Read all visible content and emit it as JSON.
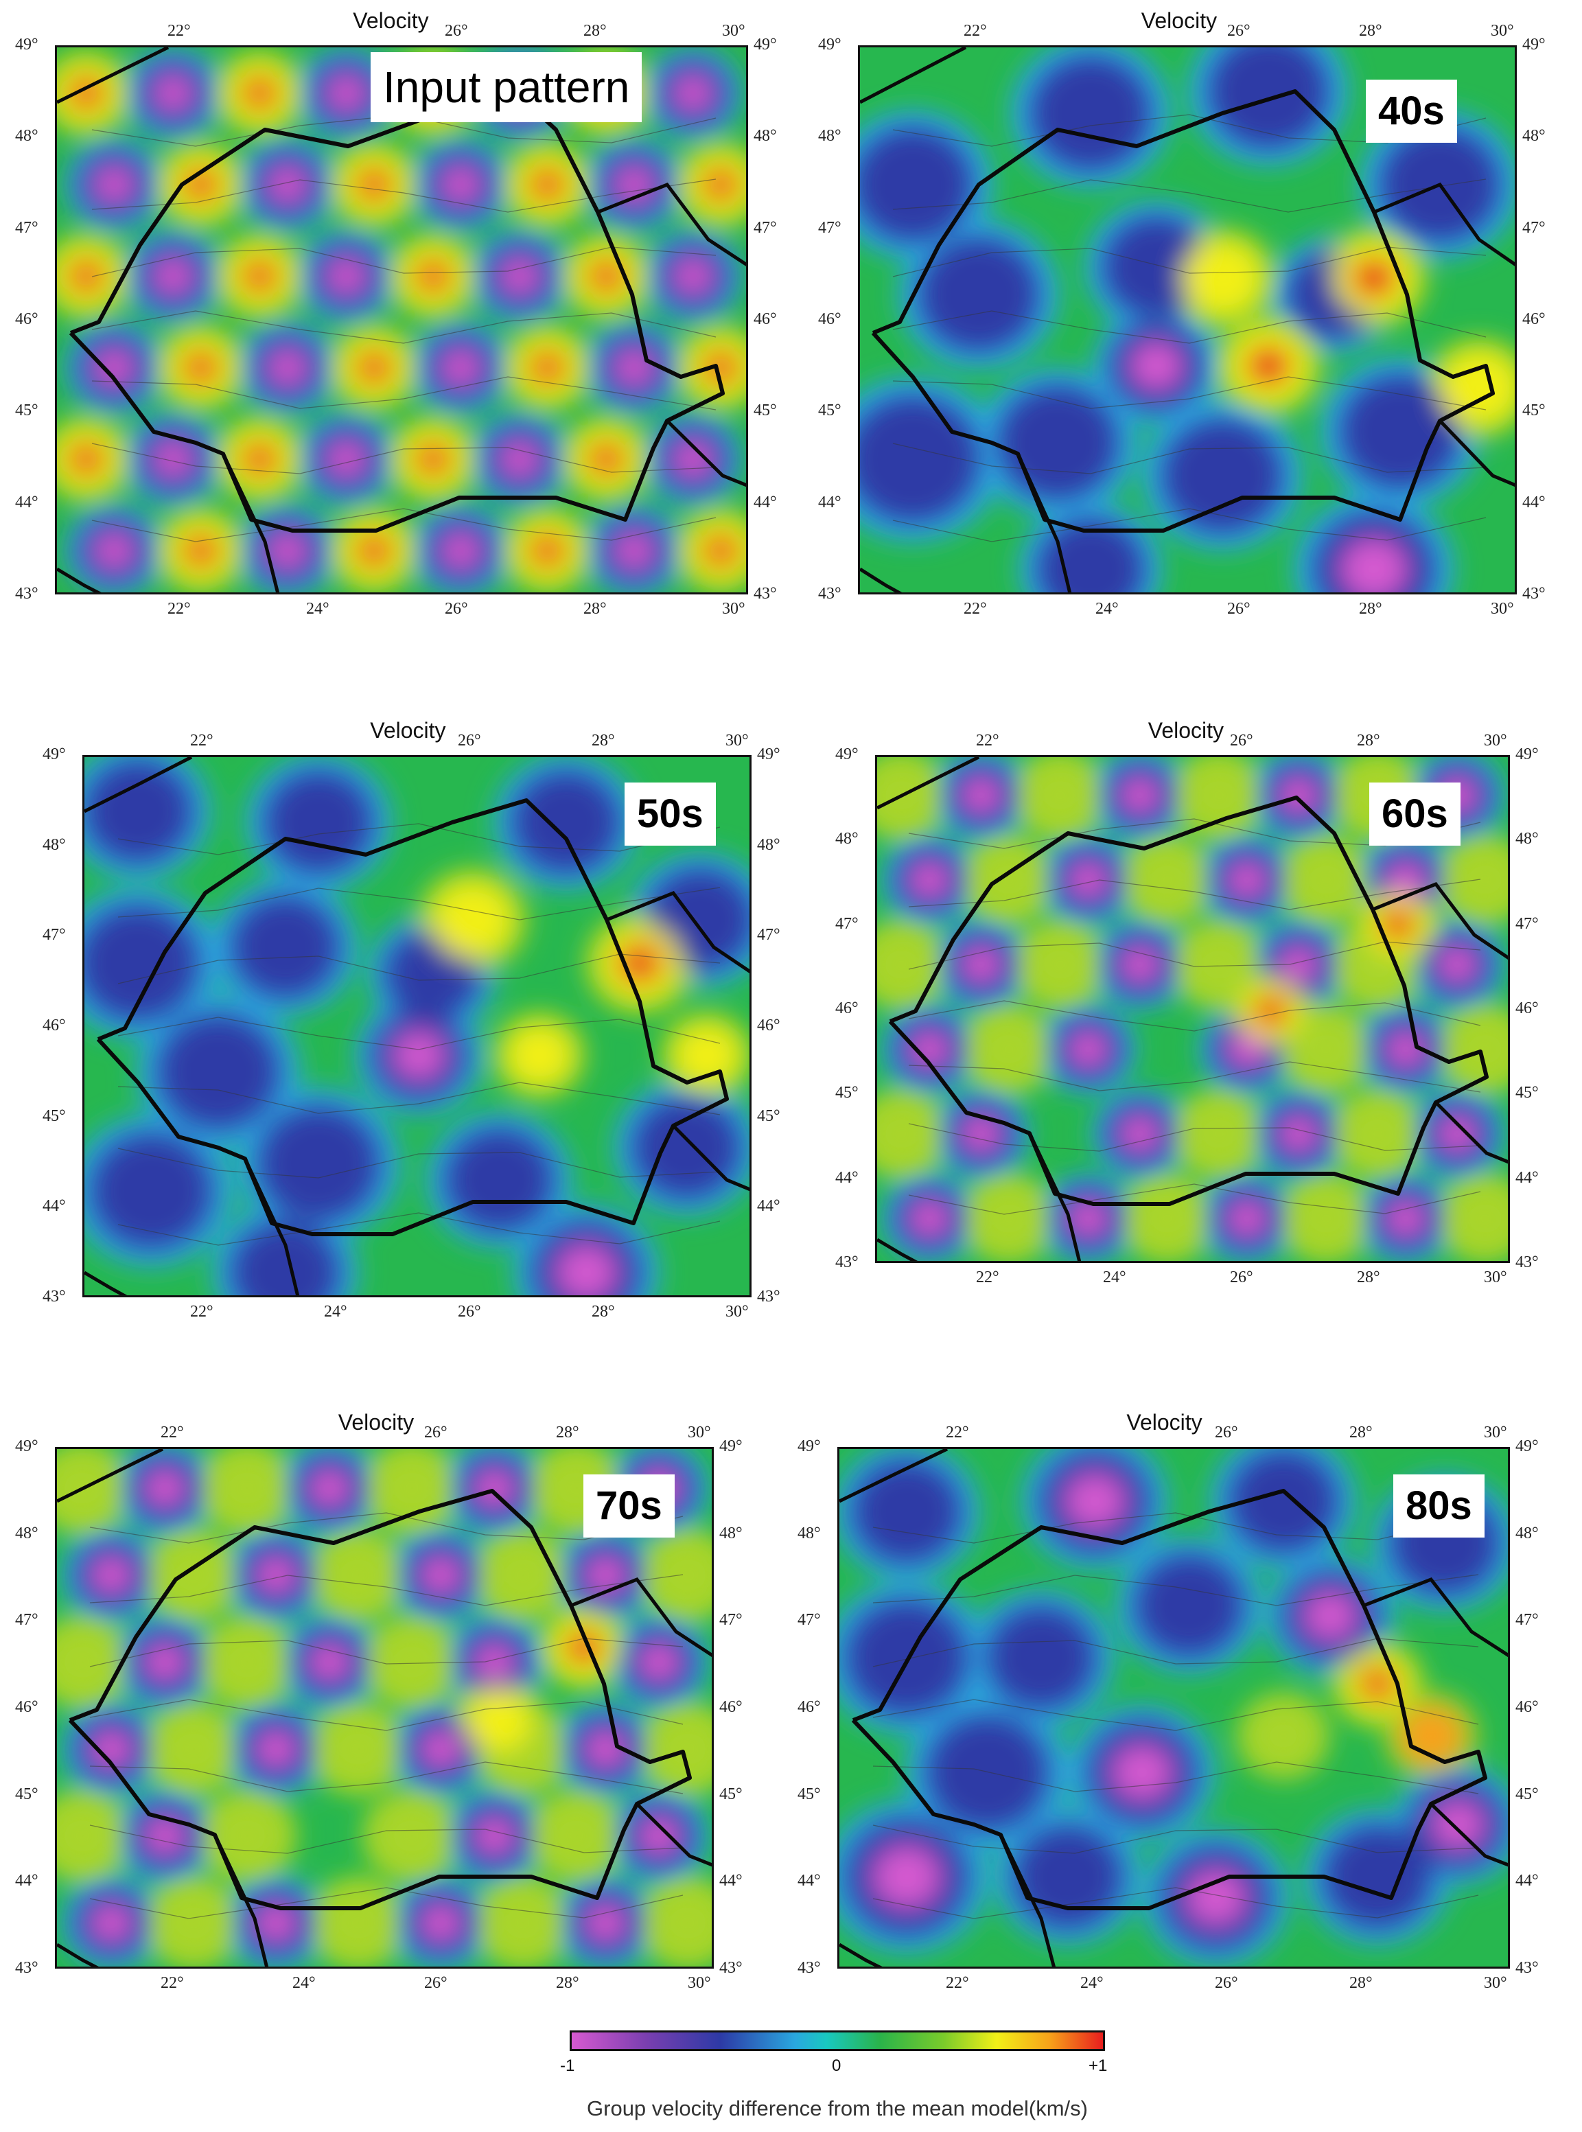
{
  "panels": [
    {
      "label": "Input pattern",
      "title": "Velocity",
      "pattern": "input"
    },
    {
      "label": "40s",
      "title": "Velocity",
      "pattern": "p40"
    },
    {
      "label": "50s",
      "title": "Velocity",
      "pattern": "p50"
    },
    {
      "label": "60s",
      "title": "Velocity",
      "pattern": "p60"
    },
    {
      "label": "70s",
      "title": "Velocity",
      "pattern": "p70"
    },
    {
      "label": "80s",
      "title": "Velocity",
      "pattern": "p80"
    }
  ],
  "lon_ticks": [
    "22°",
    "24°",
    "26°",
    "28°",
    "30°"
  ],
  "lat_ticks": [
    "49°",
    "48°",
    "47°",
    "46°",
    "45°",
    "44°",
    "43°"
  ],
  "colorbar": {
    "min_label": "-1",
    "mid_label": "0",
    "max_label": "+1",
    "caption": "Group velocity difference from the mean model(km/s)",
    "colors": [
      "#d65ad0",
      "#2d3aa6",
      "#2aa7df",
      "#2ab34a",
      "#f2ef18",
      "#e81e1e"
    ]
  }
}
